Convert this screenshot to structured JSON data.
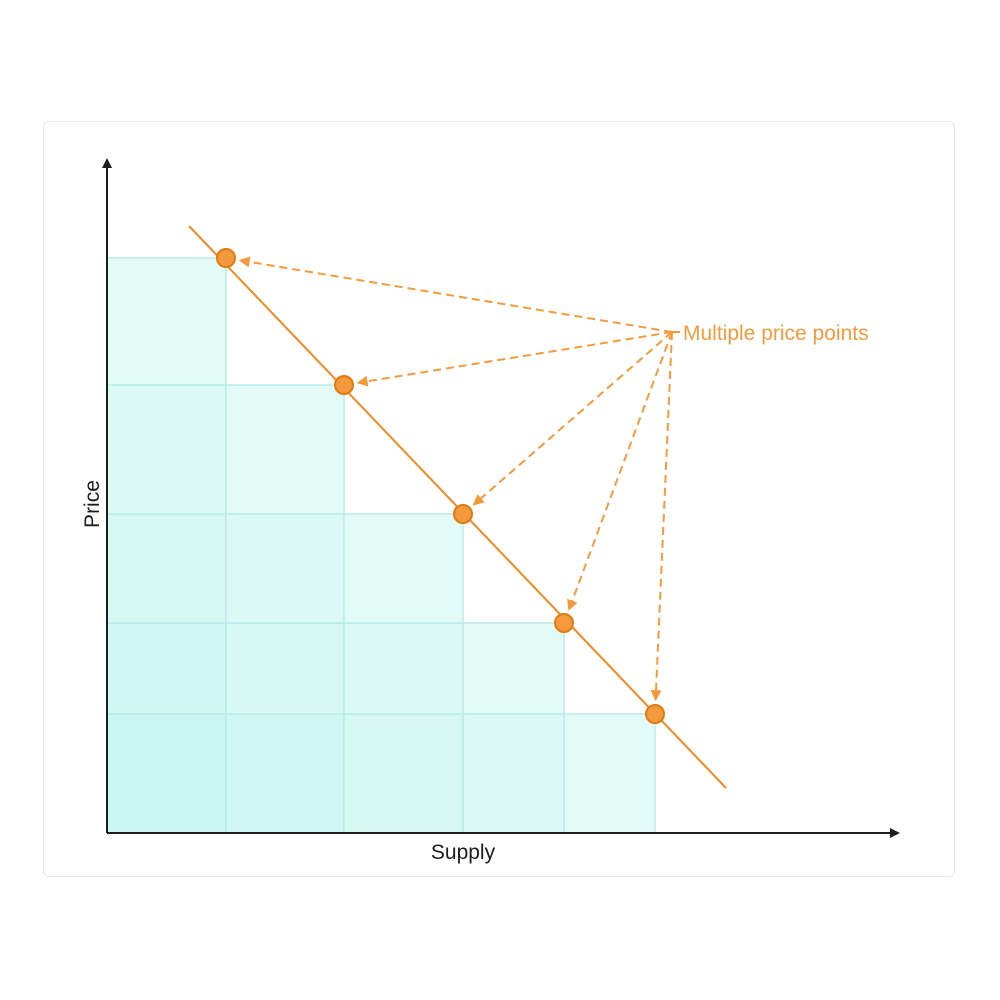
{
  "axes": {
    "x_label": "Supply",
    "y_label": "Price"
  },
  "annotation": {
    "label": "Multiple price points"
  },
  "colors": {
    "accent": "#f0891f",
    "point_fill": "#f59a3c",
    "grid_light": "#e2fbf6",
    "grid_dark": "#c9f7f2",
    "grid_stroke": "#b9ebe9",
    "axis": "#1d1d1f"
  },
  "chart_data": {
    "type": "line",
    "description_units": "relative supply (x) and price (y); axes carry no tick labels",
    "points": [
      {
        "x": 1,
        "y": 5
      },
      {
        "x": 2,
        "y": 4
      },
      {
        "x": 3,
        "y": 3
      },
      {
        "x": 4,
        "y": 2
      },
      {
        "x": 5,
        "y": 1
      }
    ],
    "xlabel": "Supply",
    "ylabel": "Price",
    "grid": true,
    "annotations": [
      "Multiple price points"
    ]
  }
}
